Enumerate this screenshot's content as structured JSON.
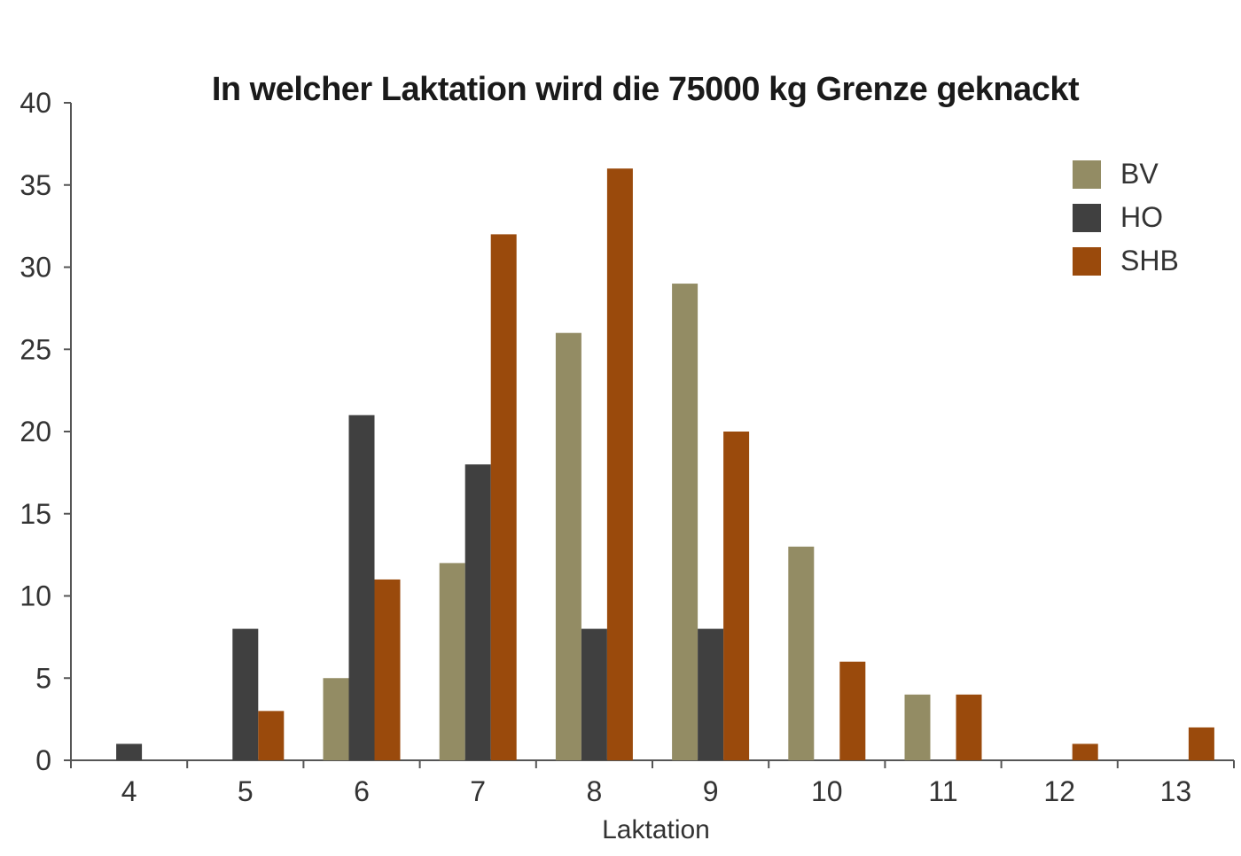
{
  "chart_data": {
    "type": "bar",
    "title": "In welcher Laktation wird die 75000 kg Grenze geknackt",
    "xlabel": "Laktation",
    "ylabel": "",
    "ylim": [
      0,
      40
    ],
    "yticks": [
      0,
      5,
      10,
      15,
      20,
      25,
      30,
      35,
      40
    ],
    "grid": false,
    "legend_position": "top-right",
    "categories": [
      "4",
      "5",
      "6",
      "7",
      "8",
      "9",
      "10",
      "11",
      "12",
      "13"
    ],
    "series": [
      {
        "name": "BV",
        "color": "#938C64",
        "values": [
          0,
          0,
          5,
          12,
          26,
          29,
          13,
          4,
          0,
          0
        ]
      },
      {
        "name": "HO",
        "color": "#404040",
        "values": [
          1,
          8,
          21,
          18,
          8,
          8,
          0,
          0,
          0,
          0
        ]
      },
      {
        "name": "SHB",
        "color": "#9A4A0C",
        "values": [
          0,
          3,
          11,
          32,
          36,
          20,
          6,
          4,
          1,
          2
        ]
      }
    ]
  }
}
